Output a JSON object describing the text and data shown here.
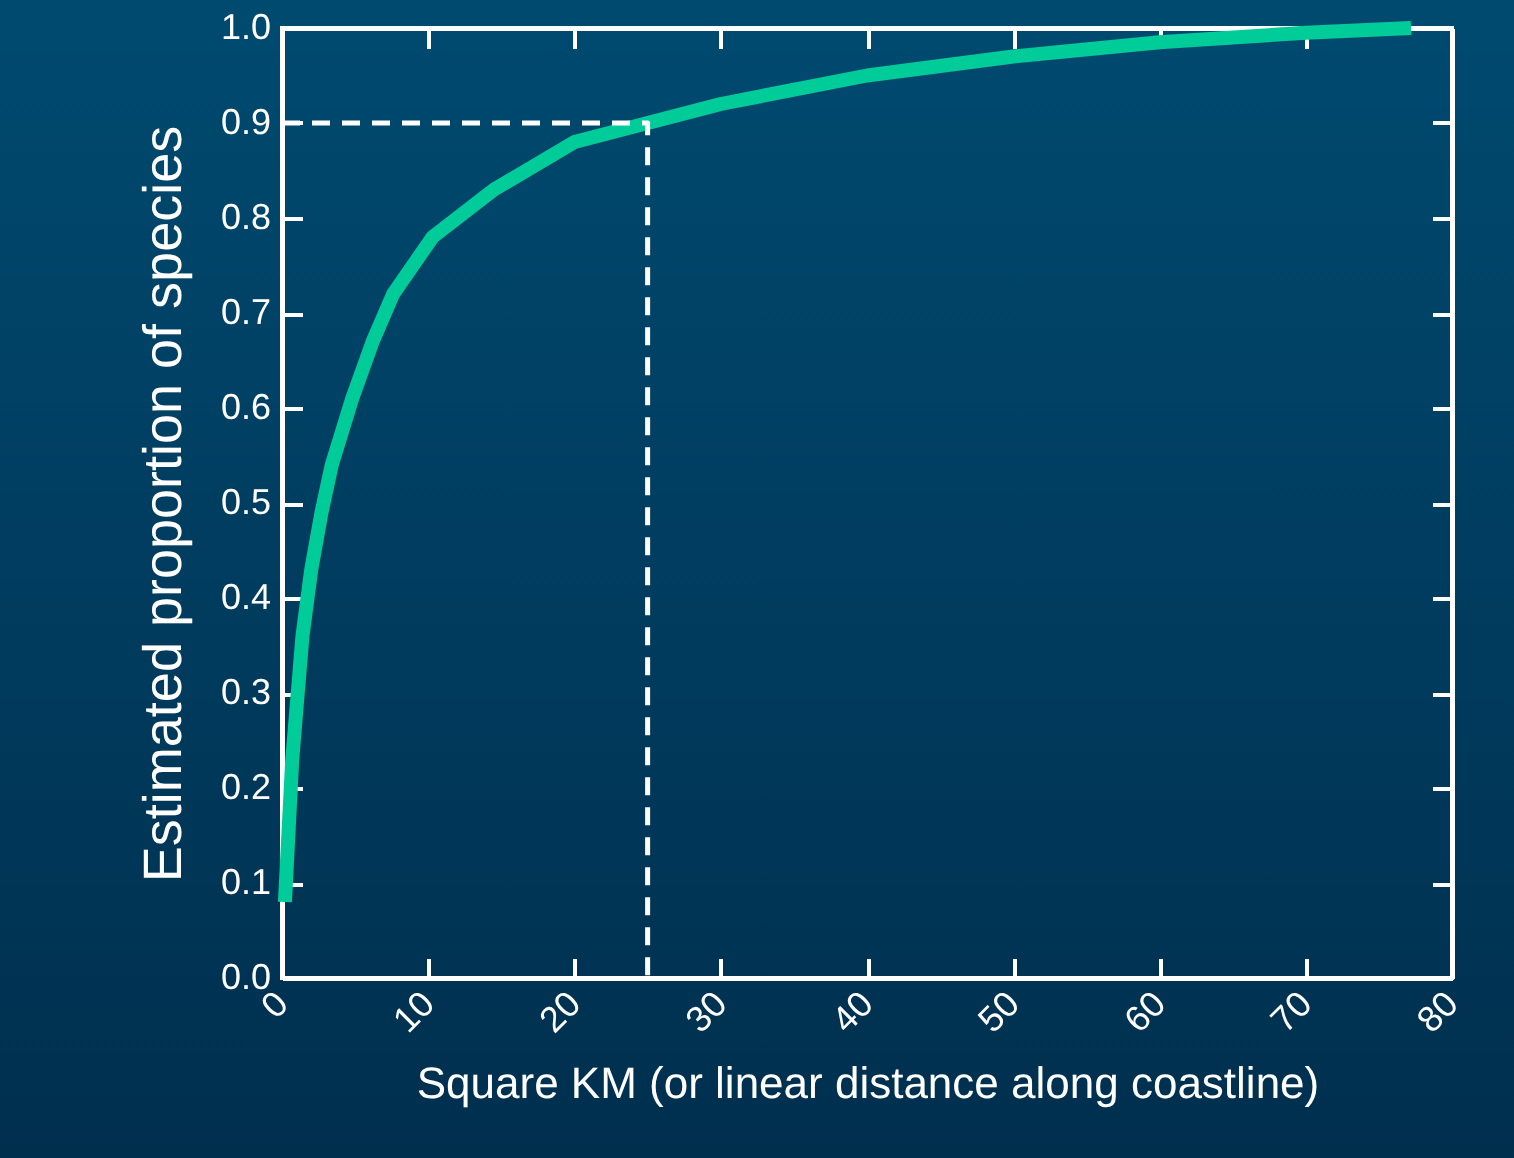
{
  "chart_data": {
    "type": "line",
    "xlabel": "Square KM (or linear distance along coastline)",
    "ylabel": "Estimated proportion of species",
    "xlim": [
      0,
      80
    ],
    "ylim": [
      0,
      1
    ],
    "xticks": [
      0,
      10,
      20,
      30,
      40,
      50,
      60,
      70,
      80
    ],
    "yticks": [
      {
        "value": 0,
        "label": "0.0"
      },
      0.1,
      0.2,
      0.3,
      0.4,
      0.5,
      0.6,
      0.7,
      0.8,
      0.9,
      {
        "value": 1,
        "label": "1.0"
      }
    ],
    "line_style": "solid",
    "marker": "none",
    "grid": false,
    "series": [
      {
        "color": "#00cc99",
        "x": [
          0.2,
          0.7,
          1.4,
          2,
          2.7,
          3.4,
          4.8,
          6.2,
          7.6,
          10.3,
          14.5,
          20,
          25,
          30,
          40,
          50,
          60,
          70,
          77.2
        ],
        "values": [
          0.08,
          0.23,
          0.36,
          0.43,
          0.49,
          0.54,
          0.61,
          0.67,
          0.72,
          0.78,
          0.83,
          0.88,
          0.9,
          0.92,
          0.95,
          0.97,
          0.985,
          0.995,
          1.0
        ]
      },
      {
        "color": "#ffffff",
        "line_style": "dashed",
        "x": [
          0,
          25,
          25
        ],
        "values": [
          0.9,
          0.9,
          0
        ]
      }
    ]
  }
}
